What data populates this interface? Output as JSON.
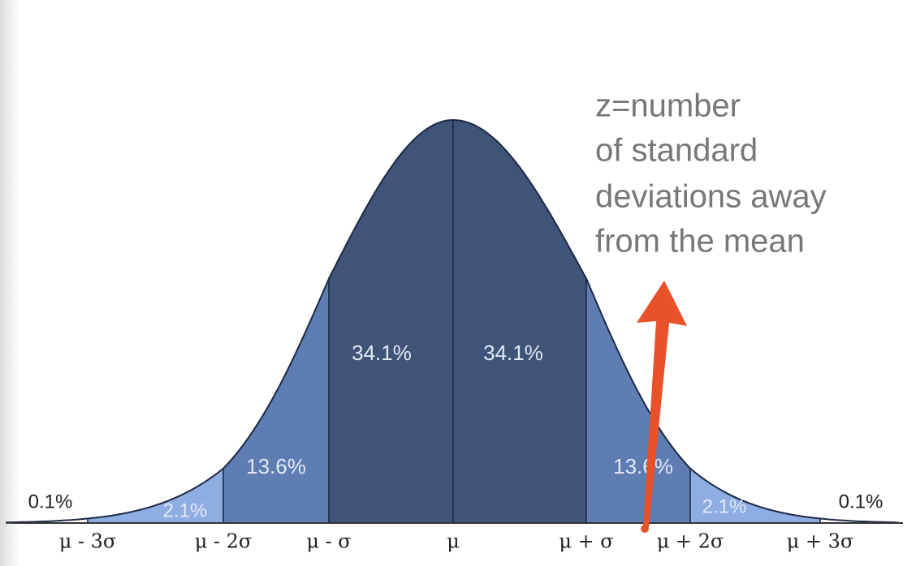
{
  "regions": {
    "center_left": "34.1%",
    "center_right": "34.1%",
    "middle_left": "13.6%",
    "middle_right": "13.6%",
    "outer_left": "2.1%",
    "outer_right": "2.1%",
    "tail_left": "0.1%",
    "tail_right": "0.1%"
  },
  "axis_labels": [
    "μ - 3σ",
    "μ - 2σ",
    "μ - σ",
    "μ",
    "μ + σ",
    "μ + 2σ",
    "μ + 3σ"
  ],
  "annotation": {
    "lines": [
      "z=number",
      "of standard",
      "deviations away",
      "from the mean"
    ]
  }
}
